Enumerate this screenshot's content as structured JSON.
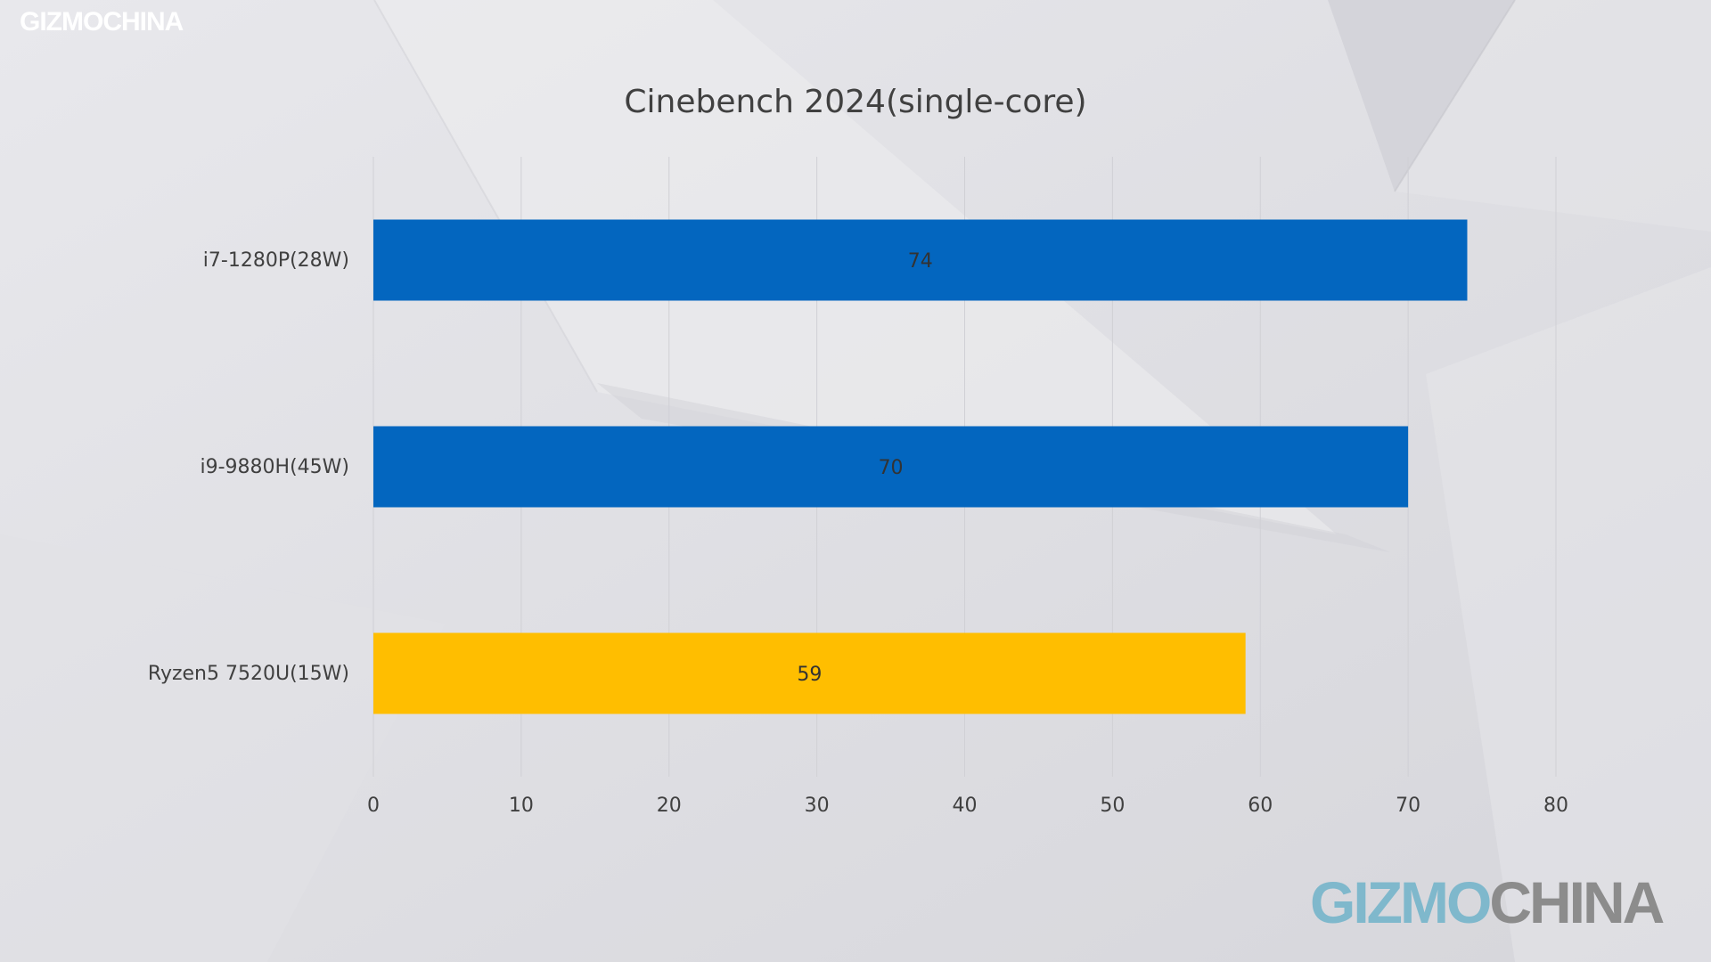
{
  "watermark": {
    "top_text": "GIZMOCHINA",
    "bottom_part1": "GIZMO",
    "bottom_part2": "CHINA"
  },
  "colors": {
    "background": "#dfdfe3",
    "intel_blue": "#0366bf",
    "amd_yellow": "#ffbe00",
    "text": "#404040"
  },
  "chart_data": {
    "type": "bar",
    "orientation": "horizontal",
    "title": "Cinebench 2024(single-core)",
    "xlabel": "",
    "ylabel": "",
    "categories": [
      "i7-1280P(28W)",
      "i9-9880H(45W)",
      "Ryzen5 7520U(15W)"
    ],
    "values": [
      74,
      70,
      59
    ],
    "bar_colors": [
      "#0366bf",
      "#0366bf",
      "#ffbe00"
    ],
    "data_labels": [
      "74",
      "70",
      "59"
    ],
    "xlim": [
      0,
      80
    ],
    "xticks": [
      0,
      10,
      20,
      30,
      40,
      50,
      60,
      70,
      80
    ],
    "grid": "vertical",
    "legend": "none"
  }
}
